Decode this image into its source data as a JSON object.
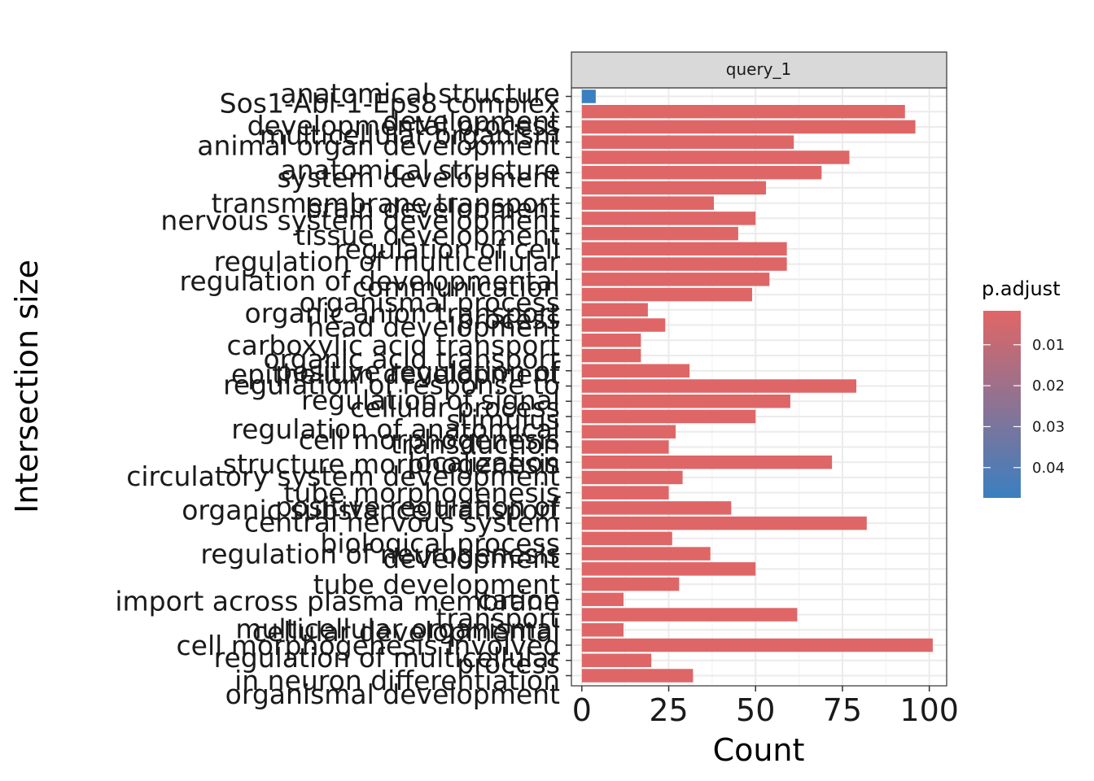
{
  "chart_data": {
    "type": "bar",
    "orientation": "horizontal",
    "facet": "query_1",
    "xlabel": "Count",
    "ylabel": "Intersection size",
    "xlim": [
      -3,
      105
    ],
    "x_ticks": [
      0,
      25,
      50,
      75,
      100
    ],
    "grid": true,
    "legend": {
      "title": "p.adjust",
      "position": "right",
      "ticks": [
        "0.01",
        "0.02",
        "0.03",
        "0.04"
      ],
      "tick_values": [
        0.01,
        0.02,
        0.03,
        0.04
      ],
      "range": [
        0.0017,
        0.0474
      ],
      "low_color": "#E06666",
      "high_color": "#3A7FC0"
    },
    "bars": [
      {
        "value": 4,
        "p_adjust": 0.0474
      },
      {
        "value": 93,
        "p_adjust": 0.002
      },
      {
        "value": 96,
        "p_adjust": 0.002
      },
      {
        "value": 61,
        "p_adjust": 0.002
      },
      {
        "value": 77,
        "p_adjust": 0.002
      },
      {
        "value": 69,
        "p_adjust": 0.002
      },
      {
        "value": 53,
        "p_adjust": 0.002
      },
      {
        "value": 38,
        "p_adjust": 0.002
      },
      {
        "value": 50,
        "p_adjust": 0.002
      },
      {
        "value": 45,
        "p_adjust": 0.002
      },
      {
        "value": 59,
        "p_adjust": 0.002
      },
      {
        "value": 59,
        "p_adjust": 0.002
      },
      {
        "value": 54,
        "p_adjust": 0.002
      },
      {
        "value": 49,
        "p_adjust": 0.002
      },
      {
        "value": 19,
        "p_adjust": 0.002
      },
      {
        "value": 24,
        "p_adjust": 0.002
      },
      {
        "value": 17,
        "p_adjust": 0.002
      },
      {
        "value": 17,
        "p_adjust": 0.002
      },
      {
        "value": 31,
        "p_adjust": 0.002
      },
      {
        "value": 79,
        "p_adjust": 0.002
      },
      {
        "value": 60,
        "p_adjust": 0.002
      },
      {
        "value": 50,
        "p_adjust": 0.002
      },
      {
        "value": 27,
        "p_adjust": 0.002
      },
      {
        "value": 25,
        "p_adjust": 0.002
      },
      {
        "value": 72,
        "p_adjust": 0.002
      },
      {
        "value": 29,
        "p_adjust": 0.002
      },
      {
        "value": 25,
        "p_adjust": 0.002
      },
      {
        "value": 43,
        "p_adjust": 0.002
      },
      {
        "value": 82,
        "p_adjust": 0.002
      },
      {
        "value": 26,
        "p_adjust": 0.002
      },
      {
        "value": 37,
        "p_adjust": 0.002
      },
      {
        "value": 50,
        "p_adjust": 0.002
      },
      {
        "value": 28,
        "p_adjust": 0.002
      },
      {
        "value": 12,
        "p_adjust": 0.002
      },
      {
        "value": 62,
        "p_adjust": 0.002
      },
      {
        "value": 12,
        "p_adjust": 0.002
      },
      {
        "value": 101,
        "p_adjust": 0.002
      },
      {
        "value": 20,
        "p_adjust": 0.002
      },
      {
        "value": 32,
        "p_adjust": 0.002
      }
    ],
    "category_labels": [
      {
        "text": "anatomical structure",
        "bar": 0,
        "dy": -4
      },
      {
        "text": "Sos1-Abl-1-Eps8 complex",
        "bar": 0,
        "dy": 8
      },
      {
        "text": "development",
        "bar": 1.6,
        "dy": 0
      },
      {
        "text": "developmental process",
        "bar": 1.9,
        "dy": 0
      },
      {
        "text": "multicellular organism",
        "bar": 2.5,
        "dy": 0
      },
      {
        "text": "animal organ development",
        "bar": 3.2,
        "dy": 0
      },
      {
        "text": "anatomical structure",
        "bar": 4.8,
        "dy": 0
      },
      {
        "text": "system development",
        "bar": 5.3,
        "dy": 0
      },
      {
        "text": "transmembrane transport",
        "bar": 7,
        "dy": 0
      },
      {
        "text": "brain development",
        "bar": 7.3,
        "dy": 0
      },
      {
        "text": "nervous system development",
        "bar": 8.1,
        "dy": 0
      },
      {
        "text": "tissue development",
        "bar": 9.1,
        "dy": 0
      },
      {
        "text": "regulation of cell",
        "bar": 10,
        "dy": 0
      },
      {
        "text": "regulation of multicellular",
        "bar": 10.8,
        "dy": 0
      },
      {
        "text": "regulation of developmental",
        "bar": 12.1,
        "dy": 0
      },
      {
        "text": "communication",
        "bar": 12.5,
        "dy": 0
      },
      {
        "text": "organismal process",
        "bar": 13.5,
        "dy": 0
      },
      {
        "text": "organic anion transport",
        "bar": 14.2,
        "dy": 0
      },
      {
        "text": "process",
        "bar": 14.6,
        "dy": 0
      },
      {
        "text": "head development",
        "bar": 15.1,
        "dy": 0
      },
      {
        "text": "carboxylic acid transport",
        "bar": 16.3,
        "dy": 0
      },
      {
        "text": "organic acid transport",
        "bar": 17.2,
        "dy": 0
      },
      {
        "text": "positive regulation of",
        "bar": 18,
        "dy": 0
      },
      {
        "text": "epithelium development",
        "bar": 18.2,
        "dy": 0
      },
      {
        "text": "regulation of response to",
        "bar": 18.9,
        "dy": 0
      },
      {
        "text": "regulation of signal",
        "bar": 19.9,
        "dy": 0
      },
      {
        "text": "cellular process",
        "bar": 20.4,
        "dy": 0
      },
      {
        "text": "stimulus",
        "bar": 21.2,
        "dy": 0
      },
      {
        "text": "regulation of anatomical",
        "bar": 21.8,
        "dy": 0
      },
      {
        "text": "cell morphogenesis",
        "bar": 22.5,
        "dy": 0
      },
      {
        "text": "transduction",
        "bar": 22.8,
        "dy": 0
      },
      {
        "text": "structure morphogenesis",
        "bar": 24.1,
        "dy": 0
      },
      {
        "text": "localization",
        "bar": 24,
        "dy": 0
      },
      {
        "text": "circulatory system development",
        "bar": 24.9,
        "dy": 0
      },
      {
        "text": "tube morphogenesis",
        "bar": 26,
        "dy": 0
      },
      {
        "text": "organic substance transport",
        "bar": 27.1,
        "dy": 0
      },
      {
        "text": "positive regulation of",
        "bar": 26.9,
        "dy": 0
      },
      {
        "text": "central nervous system",
        "bar": 27.9,
        "dy": 0
      },
      {
        "text": "biological process",
        "bar": 29.3,
        "dy": 0
      },
      {
        "text": "regulation of neurogenesis",
        "bar": 30,
        "dy": 0
      },
      {
        "text": "development",
        "bar": 30.3,
        "dy": 0
      },
      {
        "text": "tube development",
        "bar": 32,
        "dy": 0
      },
      {
        "text": "import across plasma membrane",
        "bar": 33.1,
        "dy": 0
      },
      {
        "text": "cation",
        "bar": 33,
        "dy": 0
      },
      {
        "text": "transport",
        "bar": 34.2,
        "dy": 0
      },
      {
        "text": "multicellular organismal",
        "bar": 34.9,
        "dy": 0
      },
      {
        "text": "cellular developmental",
        "bar": 35.1,
        "dy": 0
      },
      {
        "text": "cell morphogenesis involved",
        "bar": 36,
        "dy": 0
      },
      {
        "text": "regulation of multicellular",
        "bar": 36.8,
        "dy": 0
      },
      {
        "text": "process",
        "bar": 37.2,
        "dy": 0
      },
      {
        "text": "in neuron differentiation",
        "bar": 38.3,
        "dy": 0
      },
      {
        "text": "organismal development",
        "bar": 39.2,
        "dy": 0
      }
    ]
  }
}
